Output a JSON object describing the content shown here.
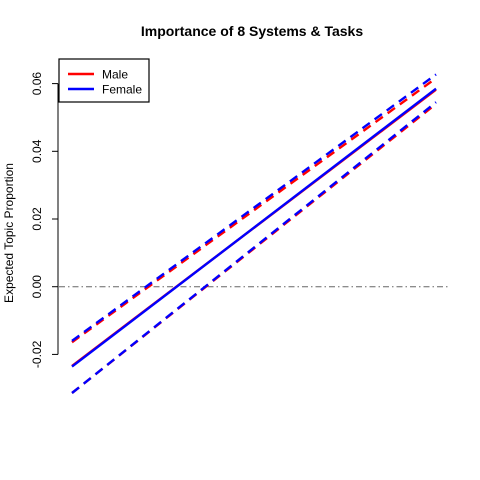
{
  "chart_data": {
    "type": "line",
    "title": "Importance of 8 Systems & Tasks",
    "xlabel": "",
    "ylabel": "Expected Topic Proportion",
    "ylim": [
      -0.0314,
      0.0652
    ],
    "xlim": [
      0,
      1
    ],
    "y_ticks": [
      -0.02,
      0.0,
      0.02,
      0.04,
      0.06
    ],
    "y_tick_labels": [
      "-0.02",
      "0.00",
      "0.02",
      "0.04",
      "0.06"
    ],
    "reference_line": {
      "y": 0,
      "style": "dash-dot",
      "color": "#666666"
    },
    "legend": {
      "placement": "top-left",
      "entries": [
        {
          "label": "Male",
          "color": "#ff0000"
        },
        {
          "label": "Female",
          "color": "#0000ff"
        }
      ]
    },
    "series": [
      {
        "name": "Male",
        "color": "#ff0000",
        "line": "solid",
        "x": [
          0,
          1
        ],
        "y": [
          -0.0234,
          0.0582
        ]
      },
      {
        "name": "Male",
        "color": "#ff0000",
        "line": "dashed",
        "x": [
          0,
          1
        ],
        "y": [
          -0.0164,
          0.0616
        ]
      },
      {
        "name": "Male",
        "color": "#ff0000",
        "line": "dashed",
        "x": [
          0,
          1
        ],
        "y": [
          -0.0314,
          0.054
        ]
      },
      {
        "name": "Female",
        "color": "#0000ff",
        "line": "solid",
        "x": [
          0,
          1
        ],
        "y": [
          -0.0236,
          0.0585
        ]
      },
      {
        "name": "Female",
        "color": "#0000ff",
        "line": "dashed",
        "x": [
          0,
          1
        ],
        "y": [
          -0.016,
          0.0627
        ]
      },
      {
        "name": "Female",
        "color": "#0000ff",
        "line": "dashed",
        "x": [
          0,
          1
        ],
        "y": [
          -0.0314,
          0.0545
        ]
      }
    ]
  }
}
